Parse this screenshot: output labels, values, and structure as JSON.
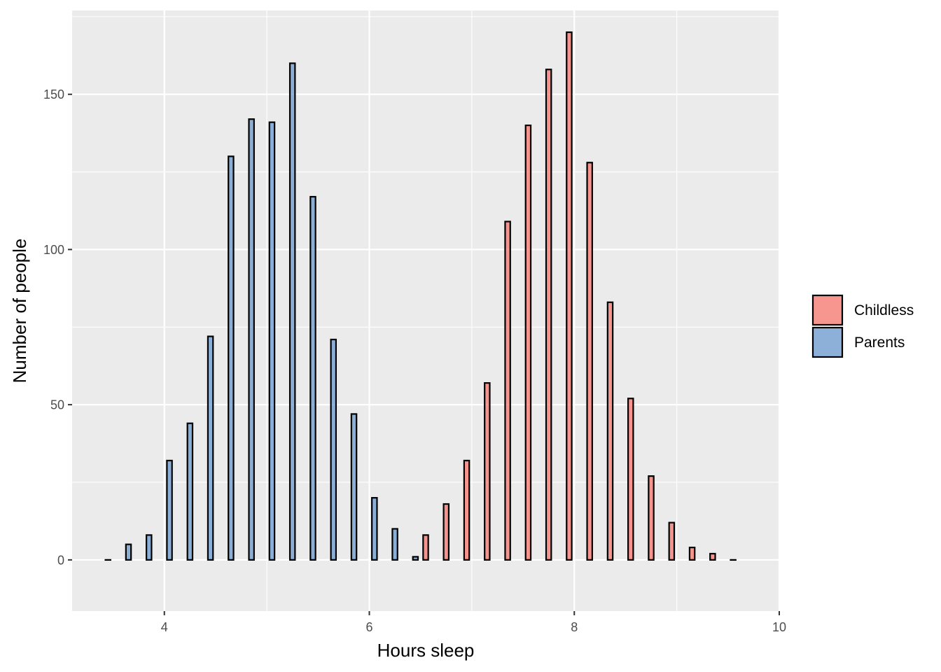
{
  "chart_data": {
    "type": "bar",
    "xlabel": "Hours sleep",
    "ylabel": "Number of people",
    "xlim": [
      3.1,
      10.0
    ],
    "ylim": [
      -16.5,
      177
    ],
    "x_ticks": [
      4,
      6,
      8,
      10
    ],
    "y_ticks": [
      0,
      50,
      100,
      150
    ],
    "grid": true,
    "legend_position": "right",
    "bin_width": 0.2,
    "series": [
      {
        "name": "Childless",
        "color": "#F8766D",
        "x": [
          6.6,
          6.8,
          7.0,
          7.2,
          7.4,
          7.6,
          7.8,
          8.0,
          8.2,
          8.4,
          8.6,
          8.8,
          9.0,
          9.2,
          9.4,
          9.6
        ],
        "values": [
          8,
          18,
          32,
          57,
          109,
          140,
          158,
          170,
          128,
          83,
          52,
          27,
          12,
          4,
          2,
          0
        ]
      },
      {
        "name": "Parents",
        "color": "#6A9ACD",
        "x": [
          3.4,
          3.6,
          3.8,
          4.0,
          4.2,
          4.4,
          4.6,
          4.8,
          5.0,
          5.2,
          5.4,
          5.6,
          5.8,
          6.0,
          6.2,
          6.4
        ],
        "values": [
          0,
          5,
          8,
          32,
          44,
          72,
          130,
          142,
          141,
          160,
          117,
          71,
          47,
          20,
          10,
          1
        ]
      }
    ]
  }
}
